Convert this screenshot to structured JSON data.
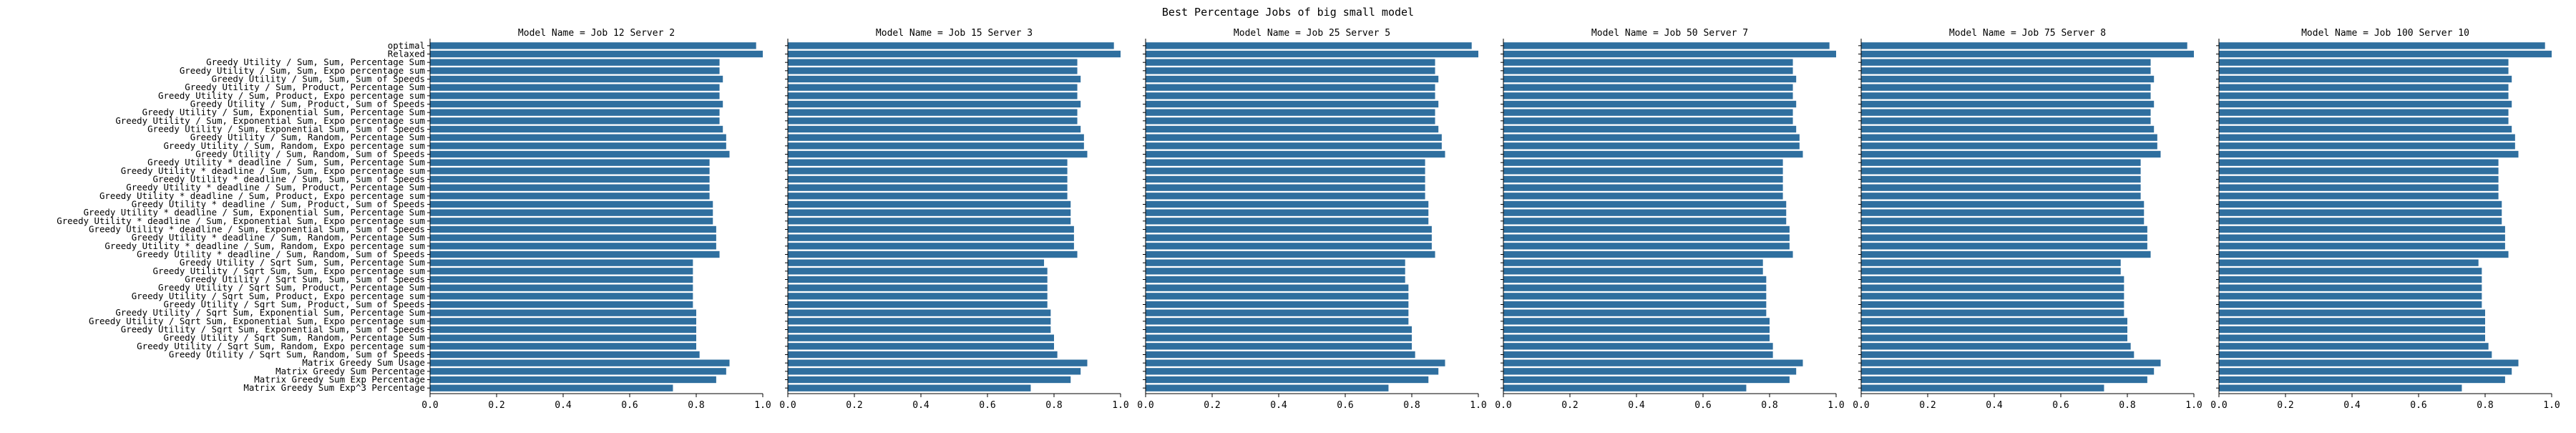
{
  "chart_data": {
    "type": "bar",
    "orientation": "horizontal",
    "title": "Best Percentage Jobs of big small model",
    "bar_color": "#2f6f9f",
    "xlim": [
      0,
      1.0
    ],
    "xticks": [
      "0.0",
      "0.2",
      "0.4",
      "0.6",
      "0.8",
      "1.0"
    ],
    "categories": [
      "optimal",
      "Relaxed",
      "Greedy Utility / Sum, Sum, Percentage Sum",
      "Greedy Utility / Sum, Sum, Expo percentage sum",
      "Greedy Utility / Sum, Sum, Sum of Speeds",
      "Greedy Utility / Sum, Product, Percentage Sum",
      "Greedy Utility / Sum, Product, Expo percentage sum",
      "Greedy Utility / Sum, Product, Sum of Speeds",
      "Greedy Utility / Sum, Exponential Sum, Percentage Sum",
      "Greedy Utility / Sum, Exponential Sum, Expo percentage sum",
      "Greedy Utility / Sum, Exponential Sum, Sum of Speeds",
      "Greedy Utility / Sum, Random, Percentage Sum",
      "Greedy Utility / Sum, Random, Expo percentage sum",
      "Greedy Utility / Sum, Random, Sum of Speeds",
      "Greedy Utility * deadline / Sum, Sum, Percentage Sum",
      "Greedy Utility * deadline / Sum, Sum, Expo percentage sum",
      "Greedy Utility * deadline / Sum, Sum, Sum of Speeds",
      "Greedy Utility * deadline / Sum, Product, Percentage Sum",
      "Greedy Utility * deadline / Sum, Product, Expo percentage sum",
      "Greedy Utility * deadline / Sum, Product, Sum of Speeds",
      "Greedy Utility * deadline / Sum, Exponential Sum, Percentage Sum",
      "Greedy Utility * deadline / Sum, Exponential Sum, Expo percentage sum",
      "Greedy Utility * deadline / Sum, Exponential Sum, Sum of Speeds",
      "Greedy Utility * deadline / Sum, Random, Percentage Sum",
      "Greedy Utility * deadline / Sum, Random, Expo percentage sum",
      "Greedy Utility * deadline / Sum, Random, Sum of Speeds",
      "Greedy Utility / Sqrt Sum, Sum, Percentage Sum",
      "Greedy Utility / Sqrt Sum, Sum, Expo percentage sum",
      "Greedy Utility / Sqrt Sum, Sum, Sum of Speeds",
      "Greedy Utility / Sqrt Sum, Product, Percentage Sum",
      "Greedy Utility / Sqrt Sum, Product, Expo percentage sum",
      "Greedy Utility / Sqrt Sum, Product, Sum of Speeds",
      "Greedy Utility / Sqrt Sum, Exponential Sum, Percentage Sum",
      "Greedy Utility / Sqrt Sum, Exponential Sum, Expo percentage sum",
      "Greedy Utility / Sqrt Sum, Exponential Sum, Sum of Speeds",
      "Greedy Utility / Sqrt Sum, Random, Percentage Sum",
      "Greedy Utility / Sqrt Sum, Random, Expo percentage sum",
      "Greedy Utility / Sqrt Sum, Random, Sum of Speeds",
      "Matrix Greedy Sum Usage",
      "Matrix Greedy Sum Percentage",
      "Matrix Greedy Sum Exp Percentage",
      "Matrix Greedy Sum Exp^3 Percentage"
    ],
    "panels": [
      {
        "title": "Model Name =  Job 12 Server 2",
        "values": [
          0.98,
          1.0,
          0.87,
          0.87,
          0.88,
          0.87,
          0.87,
          0.88,
          0.87,
          0.87,
          0.88,
          0.89,
          0.89,
          0.9,
          0.84,
          0.84,
          0.84,
          0.84,
          0.84,
          0.85,
          0.85,
          0.85,
          0.86,
          0.86,
          0.86,
          0.87,
          0.79,
          0.79,
          0.79,
          0.79,
          0.79,
          0.79,
          0.8,
          0.8,
          0.8,
          0.8,
          0.8,
          0.81,
          0.9,
          0.89,
          0.86,
          0.73
        ]
      },
      {
        "title": "Model Name =  Job 15 Server 3",
        "values": [
          0.98,
          1.0,
          0.87,
          0.87,
          0.88,
          0.87,
          0.87,
          0.88,
          0.87,
          0.87,
          0.88,
          0.89,
          0.89,
          0.9,
          0.84,
          0.84,
          0.84,
          0.84,
          0.84,
          0.85,
          0.85,
          0.85,
          0.86,
          0.86,
          0.86,
          0.87,
          0.77,
          0.78,
          0.78,
          0.78,
          0.78,
          0.78,
          0.79,
          0.79,
          0.79,
          0.8,
          0.8,
          0.81,
          0.9,
          0.88,
          0.85,
          0.73
        ]
      },
      {
        "title": "Model Name =  Job 25 Server 5",
        "values": [
          0.98,
          1.0,
          0.87,
          0.87,
          0.88,
          0.87,
          0.87,
          0.88,
          0.87,
          0.87,
          0.88,
          0.89,
          0.89,
          0.9,
          0.84,
          0.84,
          0.84,
          0.84,
          0.84,
          0.85,
          0.85,
          0.85,
          0.86,
          0.86,
          0.86,
          0.87,
          0.78,
          0.78,
          0.78,
          0.79,
          0.79,
          0.79,
          0.79,
          0.79,
          0.8,
          0.8,
          0.8,
          0.81,
          0.9,
          0.88,
          0.85,
          0.73
        ]
      },
      {
        "title": "Model Name =  Job 50 Server 7",
        "values": [
          0.98,
          1.0,
          0.87,
          0.87,
          0.88,
          0.87,
          0.87,
          0.88,
          0.87,
          0.87,
          0.88,
          0.89,
          0.89,
          0.9,
          0.84,
          0.84,
          0.84,
          0.84,
          0.84,
          0.85,
          0.85,
          0.85,
          0.86,
          0.86,
          0.86,
          0.87,
          0.78,
          0.78,
          0.79,
          0.79,
          0.79,
          0.79,
          0.79,
          0.8,
          0.8,
          0.8,
          0.81,
          0.81,
          0.9,
          0.88,
          0.86,
          0.73
        ]
      },
      {
        "title": "Model Name =  Job 75 Server 8",
        "values": [
          0.98,
          1.0,
          0.87,
          0.87,
          0.88,
          0.87,
          0.87,
          0.88,
          0.87,
          0.87,
          0.88,
          0.89,
          0.89,
          0.9,
          0.84,
          0.84,
          0.84,
          0.84,
          0.84,
          0.85,
          0.85,
          0.85,
          0.86,
          0.86,
          0.86,
          0.87,
          0.78,
          0.78,
          0.79,
          0.79,
          0.79,
          0.79,
          0.79,
          0.8,
          0.8,
          0.8,
          0.81,
          0.82,
          0.9,
          0.88,
          0.86,
          0.73
        ]
      },
      {
        "title": "Model Name =  Job 100 Server 10",
        "values": [
          0.98,
          1.0,
          0.87,
          0.87,
          0.88,
          0.87,
          0.87,
          0.88,
          0.87,
          0.87,
          0.88,
          0.89,
          0.89,
          0.9,
          0.84,
          0.84,
          0.84,
          0.84,
          0.84,
          0.85,
          0.85,
          0.85,
          0.86,
          0.86,
          0.86,
          0.87,
          0.78,
          0.79,
          0.79,
          0.79,
          0.79,
          0.79,
          0.8,
          0.8,
          0.8,
          0.8,
          0.81,
          0.82,
          0.9,
          0.88,
          0.86,
          0.73
        ]
      }
    ]
  }
}
